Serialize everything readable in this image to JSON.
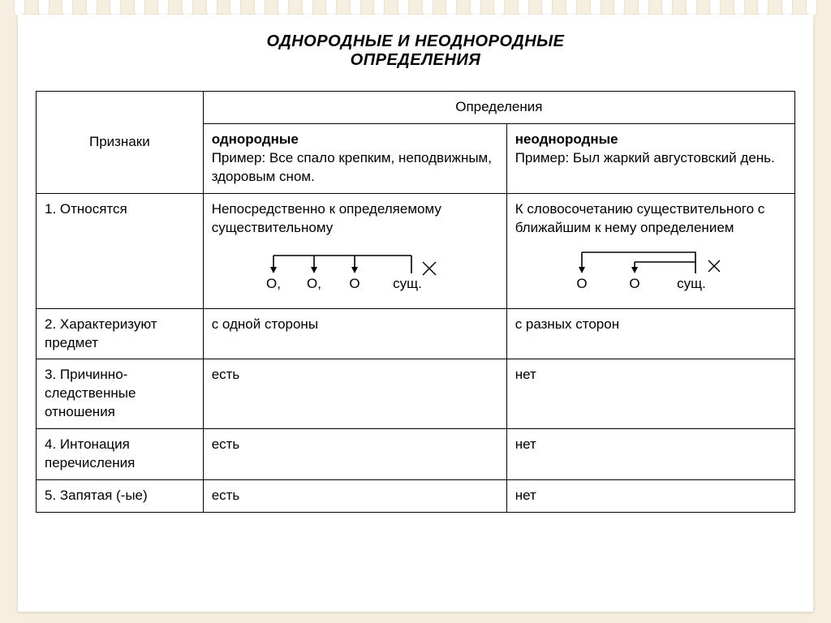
{
  "title_line1": "ОДНОРОДНЫЕ И НЕОДНОРОДНЫЕ",
  "title_line2": "ОПРЕДЕЛЕНИЯ",
  "header": {
    "col1": "Признаки",
    "col2_span": "Определения",
    "sub_homog_label": "однородные",
    "sub_homog_example_prefix": "Пример: ",
    "sub_homog_example": "Все спало крепким, неподвижным, здоровым сном.",
    "sub_hetero_label": "неоднородные",
    "sub_hetero_example_prefix": "Пример: ",
    "sub_hetero_example": "Был жаркий августовский день."
  },
  "rows": [
    {
      "label": "1. Относятся",
      "homog": "Непосредственно к определяемому существительному",
      "hetero": "К словосочетанию существительного с ближайшим к нему определением",
      "schema_homog": {
        "items": [
          "О,",
          "О,",
          "О",
          "сущ."
        ],
        "noun_index": 3,
        "arrows_from": [
          0,
          1,
          2
        ],
        "cross": true
      },
      "schema_hetero": {
        "items": [
          "О",
          "О",
          "сущ."
        ],
        "noun_index": 2,
        "chain": true,
        "cross": true
      }
    },
    {
      "label": "2. Характеризуют предмет",
      "homog": "с одной стороны",
      "hetero": "с разных сторон"
    },
    {
      "label": "3. Причинно-следственные отношения",
      "homog": "есть",
      "hetero": "нет"
    },
    {
      "label": "4. Интонация перечисления",
      "homog": "есть",
      "hetero": "нет"
    },
    {
      "label": "5. Запятая (-ые)",
      "homog": "есть",
      "hetero": "нет"
    }
  ],
  "style": {
    "page_bg": "#f6efe0",
    "sheet_bg": "#ffffff",
    "border_color": "#000000",
    "title_fontsize": 20,
    "body_fontsize": 17,
    "svg_stroke": "#000000",
    "svg_stroke_width": 1.6
  }
}
